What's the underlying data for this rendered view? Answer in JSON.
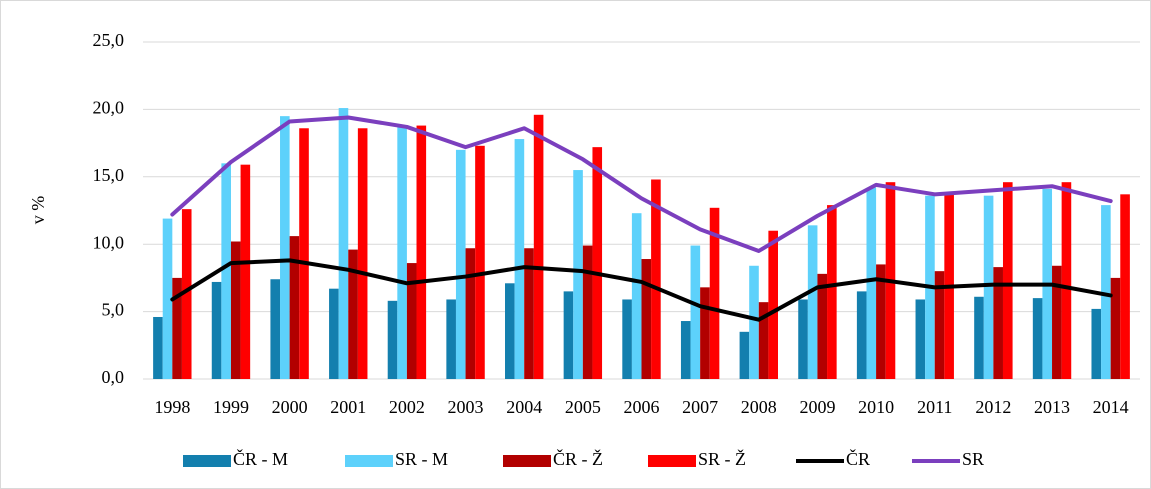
{
  "chart_data": {
    "type": "bar",
    "y_label": "v %",
    "categories": [
      "1998",
      "1999",
      "2000",
      "2001",
      "2002",
      "2003",
      "2004",
      "2005",
      "2006",
      "2007",
      "2008",
      "2009",
      "2010",
      "2011",
      "2012",
      "2013",
      "2014"
    ],
    "ylim": [
      0,
      25
    ],
    "yticks": [
      {
        "value": 0,
        "label": "0,0"
      },
      {
        "value": 5,
        "label": "5,0"
      },
      {
        "value": 10,
        "label": "10,0"
      },
      {
        "value": 15,
        "label": "15,0"
      },
      {
        "value": 20,
        "label": "20,0"
      },
      {
        "value": 25,
        "label": "25,0"
      }
    ],
    "grid": true,
    "legend": "bottom",
    "series": [
      {
        "name": "ČR - M",
        "type": "bar",
        "color": "#137fae",
        "values": [
          4.6,
          7.2,
          7.4,
          6.7,
          5.8,
          5.9,
          7.1,
          6.5,
          5.9,
          4.3,
          3.5,
          5.9,
          6.5,
          5.9,
          6.1,
          6.0,
          5.2
        ]
      },
      {
        "name": "SR - M",
        "type": "bar",
        "color": "#5dd1fb",
        "values": [
          11.9,
          16.0,
          19.5,
          20.1,
          18.7,
          17.0,
          17.8,
          15.5,
          12.3,
          9.9,
          8.4,
          11.4,
          14.2,
          13.6,
          13.6,
          14.1,
          12.9
        ]
      },
      {
        "name": "ČR - Ž",
        "type": "bar",
        "color": "#b20000",
        "values": [
          7.5,
          10.2,
          10.6,
          9.6,
          8.6,
          9.7,
          9.7,
          9.9,
          8.9,
          6.8,
          5.7,
          7.8,
          8.5,
          8.0,
          8.3,
          8.4,
          7.5
        ]
      },
      {
        "name": "SR - Ž",
        "type": "bar",
        "color": "#ff0000",
        "values": [
          12.6,
          15.9,
          18.6,
          18.6,
          18.8,
          17.3,
          19.6,
          17.2,
          14.8,
          12.7,
          11.0,
          12.9,
          14.6,
          13.8,
          14.6,
          14.6,
          13.7
        ]
      },
      {
        "name": "ČR",
        "type": "line",
        "color": "#000000",
        "values": [
          5.9,
          8.6,
          8.8,
          8.1,
          7.1,
          7.6,
          8.3,
          8.0,
          7.2,
          5.4,
          4.4,
          6.8,
          7.4,
          6.8,
          7.0,
          7.0,
          6.2
        ]
      },
      {
        "name": "SR",
        "type": "line",
        "color": "#7b3fbe",
        "values": [
          12.2,
          16.1,
          19.1,
          19.4,
          18.7,
          17.2,
          18.6,
          16.3,
          13.4,
          11.1,
          9.5,
          12.1,
          14.4,
          13.7,
          14.0,
          14.3,
          13.2
        ]
      }
    ]
  }
}
